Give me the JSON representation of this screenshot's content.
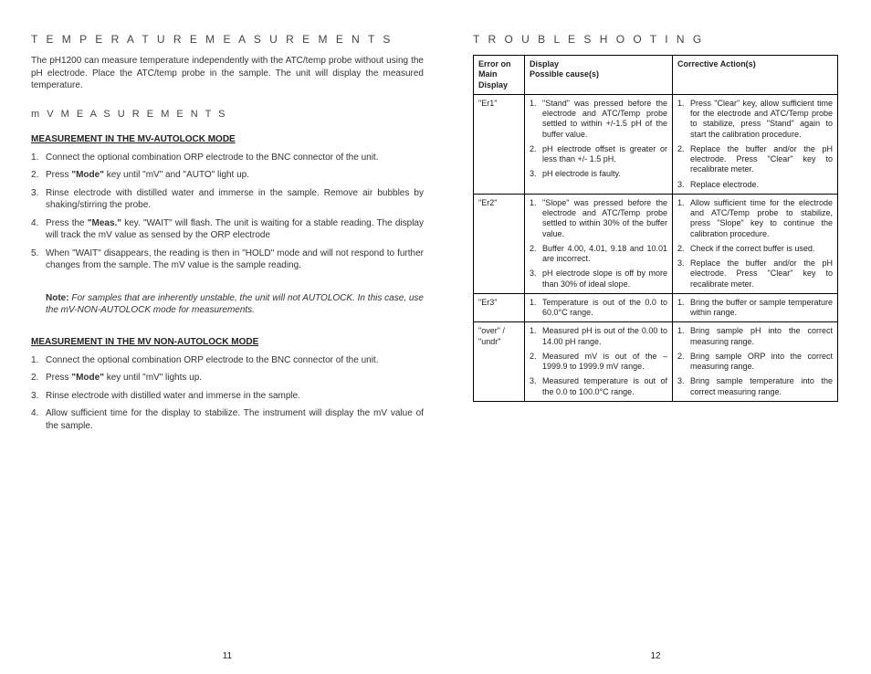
{
  "left": {
    "title1": "T E M P E R A T U R E   M E A S U R E M E N T S",
    "intro": "The pH1200 can measure temperature independently with the ATC/temp probe without using the pH electrode. Place the ATC/temp probe in the sample. The unit will display the measured temperature.",
    "title2": "m V   M E A S U R E M E N T S",
    "head1": "MEASUREMENT IN THE MV-AUTOLOCK MODE",
    "steps1": [
      "Connect the optional combination ORP electrode to the BNC connector of the unit.",
      "Press \"Mode\" key until \"mV\" and \"AUTO\" light up.",
      "Rinse electrode with distilled water and immerse in the sample. Remove air bubbles by shaking/stirring the probe.",
      "Press the \"Meas.\" key. \"WAIT\" will flash. The unit is waiting for a stable reading. The display will track the mV value as sensed by the ORP electrode",
      "When \"WAIT\" disappears, the reading is then in \"HOLD\" mode and will not respond to further changes from the sample. The mV value is the sample reading."
    ],
    "note": "For samples that are inherently unstable, the unit will not AUTOLOCK. In this case, use the mV-NON-AUTOLOCK mode for measurements.",
    "note_label": "Note:",
    "head2": "MEASUREMENT IN THE MV NON-AUTOLOCK MODE",
    "steps2": [
      "Connect the optional combination ORP electrode to the BNC connector of the unit.",
      "Press \"Mode\" key until \"mV\" lights up.",
      "Rinse electrode with distilled water and immerse in the sample.",
      "Allow sufficient time for the display to stabilize. The instrument will display the mV value of the sample."
    ],
    "page_num": "11"
  },
  "right": {
    "title": "T R O U B L E S H O O T I N G",
    "th_err": "Error on Main Display",
    "th_cause": "Display\nPossible cause(s)",
    "th_action": "Corrective Action(s)",
    "rows": [
      {
        "err": "\"Er1\"",
        "causes": [
          "\"Stand\" was pressed before the electrode and ATC/Temp probe settled to within +/-1.5 pH of the buffer value.",
          "pH electrode offset is greater or less than +/- 1.5 pH.",
          "pH electrode is faulty."
        ],
        "actions": [
          "Press \"Clear\" key, allow sufficient time for the electrode and ATC/Temp probe to stabilize, press \"Stand\" again to start the calibration procedure.",
          "Replace the buffer and/or the pH electrode. Press \"Clear\" key to recalibrate meter.",
          "Replace electrode."
        ]
      },
      {
        "err": "\"Er2\"",
        "causes": [
          "\"Slope\" was pressed before the electrode and ATC/Temp probe settled to within 30% of the buffer value.",
          "Buffer 4.00, 4.01, 9.18 and 10.01 are incorrect.",
          "pH electrode slope is off by more than 30% of ideal slope."
        ],
        "actions": [
          "Allow sufficient time for the electrode and ATC/Temp probe to stabilize, press \"Slope\" key to continue the calibration procedure.",
          "Check if the correct buffer is used.",
          "Replace the buffer and/or the pH electrode. Press \"Clear\" key to recalibrate meter."
        ]
      },
      {
        "err": "\"Er3\"",
        "causes": [
          "Temperature is out of the 0.0 to 60.0°C range."
        ],
        "actions": [
          "Bring the buffer or sample temperature within range."
        ]
      },
      {
        "err": "\"over\" / \"undr\"",
        "causes": [
          "Measured pH is out of the 0.00 to 14.00 pH range.",
          "Measured mV is out of the –1999.9 to 1999.9 mV range.",
          "Measured temperature is out of the 0.0 to 100.0°C range."
        ],
        "actions": [
          "Bring sample pH into the correct measuring range.",
          "Bring sample ORP into the correct measuring range.",
          "Bring sample temperature into the correct measuring range."
        ]
      }
    ],
    "page_num": "12"
  }
}
